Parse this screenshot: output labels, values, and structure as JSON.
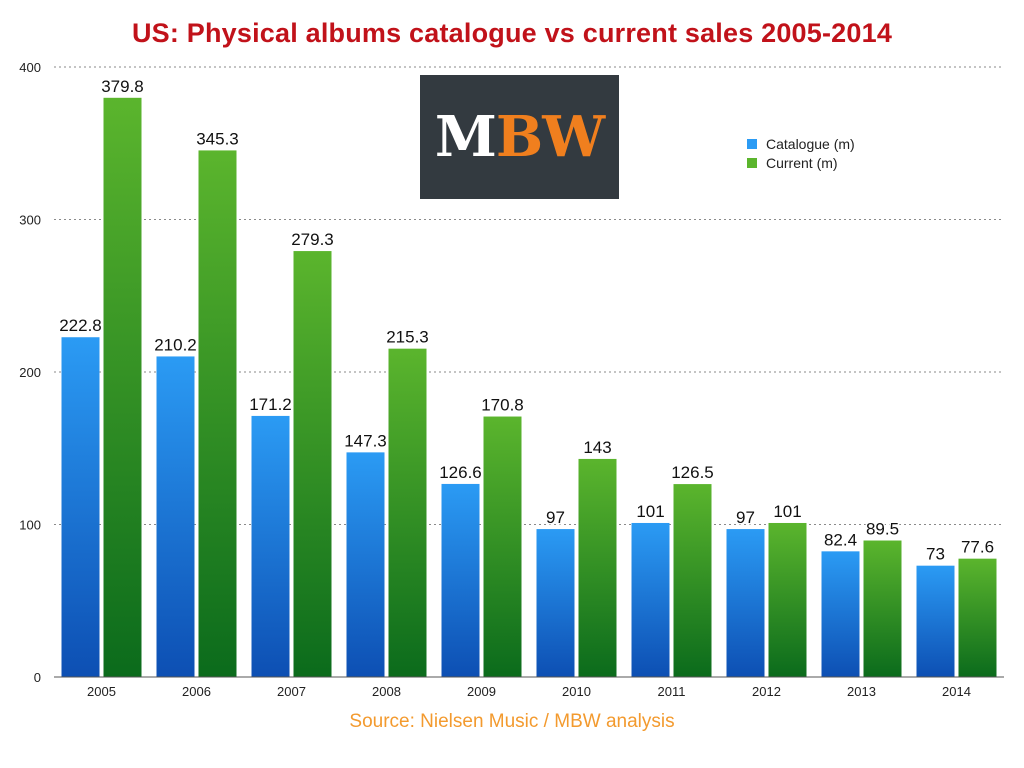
{
  "title": "US: Physical albums catalogue vs current sales 2005-2014",
  "source": "Source: Nielsen Music / MBW analysis",
  "logo": {
    "text_primary": "M",
    "text_accent": "BW",
    "background": "#333a40",
    "accent": "#f07f1e"
  },
  "colors": {
    "title": "#c1121a",
    "source": "#f39a2e",
    "catalogue_top": "#2b9bf4",
    "catalogue_bottom": "#0d4fb3",
    "current_top": "#5bb52d",
    "current_bottom": "#0b6b1c"
  },
  "chart_data": {
    "type": "bar",
    "categories": [
      "2005",
      "2006",
      "2007",
      "2008",
      "2009",
      "2010",
      "2011",
      "2012",
      "2013",
      "2014"
    ],
    "series": [
      {
        "name": "Catalogue (m)",
        "values": [
          222.8,
          210.2,
          171.2,
          147.3,
          126.6,
          97,
          101,
          97,
          82.4,
          73
        ]
      },
      {
        "name": "Current (m)",
        "values": [
          379.8,
          345.3,
          279.3,
          215.3,
          170.8,
          143,
          126.5,
          101,
          89.5,
          77.6
        ]
      }
    ],
    "ylim": [
      0,
      400
    ],
    "yticks": [
      "0",
      "100",
      "200",
      "300",
      "400"
    ],
    "grid": true,
    "legend": "top-right"
  }
}
